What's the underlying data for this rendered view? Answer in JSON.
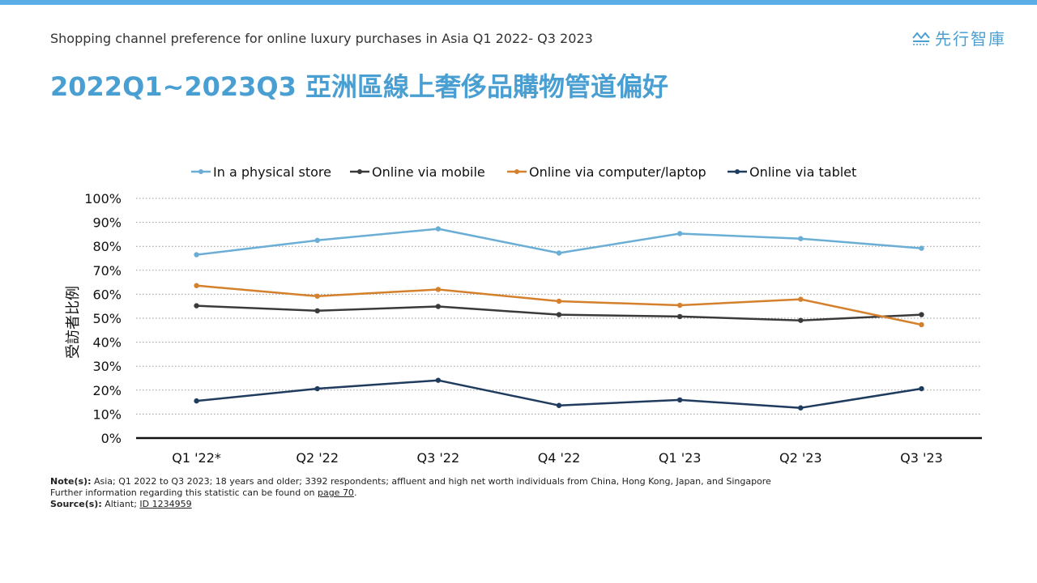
{
  "header": {
    "subtitle": "Shopping channel preference for online luxury purchases in Asia Q1 2022- Q3 2023",
    "title": "2022Q1~2023Q3 亞洲區線上奢侈品購物管道偏好",
    "logo_text": "先行智庫",
    "accent_color": "#4a9fd2",
    "top_bar_color": "#5aaee8"
  },
  "chart_data": {
    "type": "line",
    "categories": [
      "Q1 '22*",
      "Q2 '22",
      "Q3 '22",
      "Q4 '22",
      "Q1 '23",
      "Q2 '23",
      "Q3 '23"
    ],
    "ylabel": "受訪者比例",
    "ylim": [
      0,
      100
    ],
    "yticks": [
      "0%",
      "10%",
      "20%",
      "30%",
      "40%",
      "50%",
      "60%",
      "70%",
      "80%",
      "90%",
      "100%"
    ],
    "grid": "dotted horizontal",
    "legend": "top",
    "series": [
      {
        "name": "In a physical store",
        "color": "#6aaed6",
        "values": [
          76.5,
          82.5,
          87.3,
          77.2,
          85.3,
          83.2,
          79.2
        ]
      },
      {
        "name": "Online via mobile",
        "color": "#3a3a3a",
        "values": [
          55.2,
          53.1,
          54.9,
          51.5,
          50.7,
          49.1,
          51.5
        ]
      },
      {
        "name": "Online via computer/laptop",
        "color": "#d4802c",
        "values": [
          63.6,
          59.2,
          62.0,
          57.1,
          55.4,
          57.9,
          47.3
        ]
      },
      {
        "name": "Online via tablet",
        "color": "#1f3b5e",
        "values": [
          15.5,
          20.6,
          24.1,
          13.6,
          15.9,
          12.6,
          20.6
        ]
      }
    ]
  },
  "footer": {
    "note_label": "Note(s):",
    "note_text": " Asia; Q1 2022 to Q3 2023; 18 years and older; 3392 respondents; affluent and high net worth individuals from China, Hong Kong, Japan, and Singapore",
    "further_text": "Further information regarding this statistic can be found on ",
    "further_link": "page 70",
    "further_end": ".",
    "source_label": "Source(s):",
    "source_text": " Altiant; ",
    "source_link": "ID 1234959"
  }
}
